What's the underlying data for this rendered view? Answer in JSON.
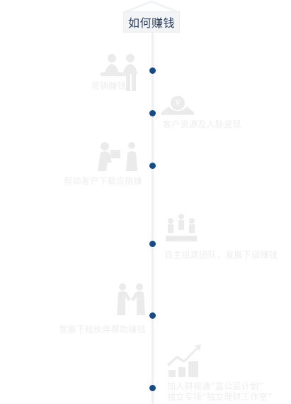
{
  "header": {
    "title": "如何赚钱"
  },
  "timeline": {
    "items": [
      {
        "label": "营销赚钱",
        "side": "left",
        "icon": "meeting-icon"
      },
      {
        "label": "客户资源及人脉变现",
        "side": "right",
        "icon": "coin-hands-icon"
      },
      {
        "label": "帮助客户下载应用赚",
        "side": "left",
        "icon": "delivery-icon"
      },
      {
        "label": "自主组建团队，发展下级赚钱",
        "side": "right",
        "icon": "team-podium-icon"
      },
      {
        "label": "发展下线伙伴帮助赚钱",
        "side": "left",
        "icon": "handshake-icon"
      },
      {
        "label_lines": [
          "加入财视通“富公妥计划”",
          "独立专项“独立理财工作室”"
        ],
        "side": "right",
        "icon": "growth-chart-icon"
      }
    ]
  },
  "colors": {
    "dot": "#184a86",
    "axis": "#eef0f3",
    "title": "#2a3f61",
    "faint": "#ededed"
  }
}
